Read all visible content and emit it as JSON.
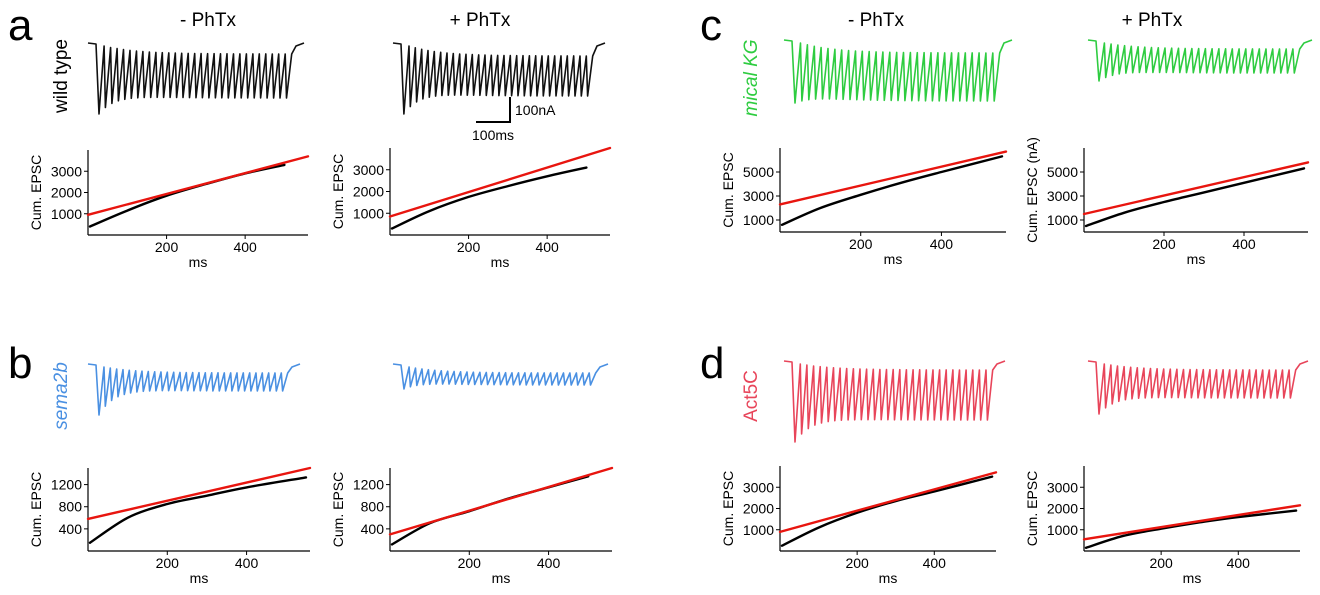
{
  "conditions": [
    "- PhTx",
    "+ PhTx"
  ],
  "colors": {
    "a": "#111111",
    "b": "#4a90e2",
    "c": "#2ecc40",
    "d": "#e8455a",
    "fit": "#e8150f",
    "cum": "#000000"
  },
  "scale_bar": {
    "amplitude_label": "100nA",
    "time_label": "100ms"
  },
  "panels": [
    {
      "id": "a",
      "letter": "a",
      "genotype": "wild type",
      "italic": false
    },
    {
      "id": "b",
      "letter": "b",
      "genotype": "sema2b",
      "italic": true
    },
    {
      "id": "c",
      "letter": "c",
      "genotype": "mical KG",
      "italic": true
    },
    {
      "id": "d",
      "letter": "d",
      "genotype": "Act5C",
      "italic": false
    }
  ],
  "chart_data": [
    {
      "type": "line",
      "panel": "a",
      "condition": "- PhTx",
      "xlabel": "ms",
      "ylabel": "Cum. EPSC",
      "x_ticks": [
        200,
        400
      ],
      "y_ticks": [
        1000,
        2000,
        3000
      ],
      "xlim": [
        0,
        560
      ],
      "ylim": [
        0,
        4000
      ],
      "series": [
        {
          "role": "cumulative",
          "x": [
            0,
            100,
            200,
            300,
            400,
            500
          ],
          "y": [
            400,
            1150,
            1850,
            2400,
            2900,
            3300
          ]
        },
        {
          "role": "linear-fit",
          "x": [
            0,
            560
          ],
          "y": [
            950,
            3700
          ]
        }
      ]
    },
    {
      "type": "line",
      "panel": "a",
      "condition": "+ PhTx",
      "xlabel": "ms",
      "ylabel": "Cum. EPSC",
      "x_ticks": [
        200,
        400
      ],
      "y_ticks": [
        1000,
        2000,
        3000
      ],
      "xlim": [
        0,
        560
      ],
      "ylim": [
        0,
        4000
      ],
      "series": [
        {
          "role": "cumulative",
          "x": [
            0,
            100,
            200,
            300,
            400,
            500
          ],
          "y": [
            300,
            1100,
            1750,
            2250,
            2700,
            3100
          ]
        },
        {
          "role": "linear-fit",
          "x": [
            0,
            560
          ],
          "y": [
            850,
            4000
          ]
        }
      ]
    },
    {
      "type": "line",
      "panel": "b",
      "condition": "- PhTx",
      "xlabel": "ms",
      "ylabel": "Cum. EPSC",
      "x_ticks": [
        200,
        400
      ],
      "y_ticks": [
        400,
        800,
        1200
      ],
      "xlim": [
        0,
        560
      ],
      "ylim": [
        0,
        1500
      ],
      "series": [
        {
          "role": "cumulative",
          "x": [
            0,
            100,
            200,
            300,
            400,
            550
          ],
          "y": [
            150,
            600,
            850,
            1000,
            1150,
            1330
          ]
        },
        {
          "role": "linear-fit",
          "x": [
            0,
            560
          ],
          "y": [
            580,
            1500
          ]
        }
      ]
    },
    {
      "type": "line",
      "panel": "b",
      "condition": "+ PhTx",
      "xlabel": "ms",
      "ylabel": "Cum. EPSC",
      "x_ticks": [
        200,
        400
      ],
      "y_ticks": [
        400,
        800,
        1200
      ],
      "xlim": [
        0,
        560
      ],
      "ylim": [
        0,
        1500
      ],
      "series": [
        {
          "role": "cumulative",
          "x": [
            0,
            100,
            200,
            300,
            400,
            500
          ],
          "y": [
            120,
            500,
            720,
            950,
            1150,
            1350
          ]
        },
        {
          "role": "linear-fit",
          "x": [
            0,
            560
          ],
          "y": [
            300,
            1500
          ]
        }
      ]
    },
    {
      "type": "line",
      "panel": "c",
      "condition": "- PhTx",
      "xlabel": "ms",
      "ylabel": "Cum. EPSC",
      "x_ticks": [
        200,
        400
      ],
      "y_ticks": [
        1000,
        3000,
        5000
      ],
      "xlim": [
        0,
        560
      ],
      "ylim": [
        0,
        7000
      ],
      "series": [
        {
          "role": "cumulative",
          "x": [
            0,
            100,
            200,
            300,
            400,
            550
          ],
          "y": [
            600,
            2000,
            3100,
            4100,
            5000,
            6300
          ]
        },
        {
          "role": "linear-fit",
          "x": [
            0,
            560
          ],
          "y": [
            2300,
            6700
          ]
        }
      ]
    },
    {
      "type": "line",
      "panel": "c",
      "condition": "+ PhTx",
      "xlabel": "ms",
      "ylabel": "Cum. EPSC (nA)",
      "x_ticks": [
        200,
        400
      ],
      "y_ticks": [
        1000,
        3000,
        5000
      ],
      "xlim": [
        0,
        560
      ],
      "ylim": [
        0,
        7000
      ],
      "series": [
        {
          "role": "cumulative",
          "x": [
            0,
            100,
            200,
            300,
            400,
            550
          ],
          "y": [
            500,
            1600,
            2500,
            3300,
            4100,
            5300
          ]
        },
        {
          "role": "linear-fit",
          "x": [
            0,
            560
          ],
          "y": [
            1500,
            5800
          ]
        }
      ]
    },
    {
      "type": "line",
      "panel": "d",
      "condition": "- PhTx",
      "xlabel": "ms",
      "ylabel": "Cum. EPSC",
      "x_ticks": [
        200,
        400
      ],
      "y_ticks": [
        1000,
        2000,
        3000
      ],
      "xlim": [
        0,
        560
      ],
      "ylim": [
        0,
        4000
      ],
      "series": [
        {
          "role": "cumulative",
          "x": [
            0,
            100,
            200,
            300,
            400,
            550
          ],
          "y": [
            250,
            1100,
            1800,
            2350,
            2800,
            3500
          ]
        },
        {
          "role": "linear-fit",
          "x": [
            0,
            560
          ],
          "y": [
            900,
            3700
          ]
        }
      ]
    },
    {
      "type": "line",
      "panel": "d",
      "condition": "+ PhTx",
      "xlabel": "ms",
      "ylabel": "Cum. EPSC",
      "x_ticks": [
        200,
        400
      ],
      "y_ticks": [
        1000,
        2000,
        3000
      ],
      "xlim": [
        0,
        560
      ],
      "ylim": [
        0,
        4000
      ],
      "series": [
        {
          "role": "cumulative",
          "x": [
            0,
            100,
            200,
            300,
            400,
            550
          ],
          "y": [
            150,
            700,
            1050,
            1350,
            1600,
            1900
          ]
        },
        {
          "role": "linear-fit",
          "x": [
            0,
            560
          ],
          "y": [
            550,
            2150
          ]
        }
      ]
    }
  ]
}
